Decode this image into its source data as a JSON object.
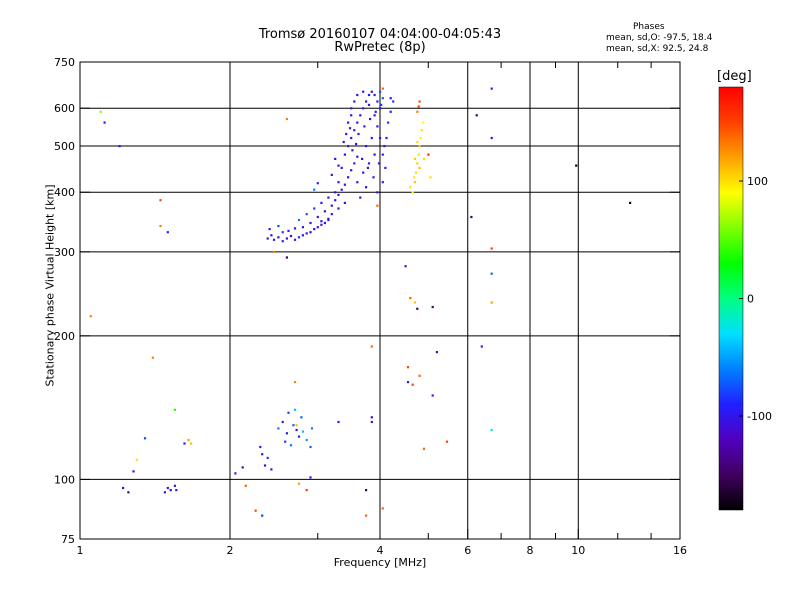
{
  "chart_data": {
    "type": "scatter",
    "title": "Tromsø 20160107 04:04:00-04:05:43",
    "subtitle": "RwPretec (8p)",
    "xlabel": "Frequency [MHz]",
    "ylabel": "Stationary phase Virtual Height [km]",
    "x_scale": "log",
    "y_scale": "log",
    "xlim": [
      1,
      16
    ],
    "ylim": [
      75,
      750
    ],
    "x_ticks": [
      1,
      2,
      4,
      6,
      8,
      10,
      16
    ],
    "x_tick_labels": [
      "1",
      "2",
      "4",
      "6",
      "8",
      "10",
      "16"
    ],
    "y_ticks": [
      75,
      100,
      200,
      300,
      400,
      500,
      600,
      750
    ],
    "y_tick_labels": [
      "75",
      "100",
      "200",
      "300",
      "400",
      "500",
      "600",
      "750"
    ],
    "x_gridlines": [
      2,
      4,
      6,
      8,
      10
    ],
    "y_gridlines": [
      100,
      200,
      300,
      400,
      500,
      600
    ],
    "grid": true,
    "phases_legend": {
      "title": "Phases",
      "o_text": "mean, sd,O: -97.5, 18.4",
      "x_text": "mean, sd,X:  92.5, 24.8"
    },
    "colorbar": {
      "unit_label": "[deg]",
      "range": [
        -180,
        180
      ],
      "ticks": [
        100,
        0,
        -100
      ],
      "tick_labels": [
        "100",
        "0",
        "-100"
      ]
    },
    "color_scale": [
      "#000000",
      "#400060",
      "#5000c0",
      "#2020ff",
      "#0080ff",
      "#00e0ff",
      "#00ff80",
      "#00ff00",
      "#80ff00",
      "#ffff00",
      "#ffa000",
      "#ff4000",
      "#ff0000"
    ],
    "series": [
      {
        "points": [
          [
            2.38,
            320,
            -100
          ],
          [
            2.42,
            325,
            -110
          ],
          [
            2.45,
            318,
            -95
          ],
          [
            2.5,
            322,
            -105
          ],
          [
            2.55,
            316,
            -90
          ],
          [
            2.6,
            320,
            -100
          ],
          [
            2.65,
            324,
            -115
          ],
          [
            2.7,
            318,
            -100
          ],
          [
            2.75,
            322,
            -85
          ],
          [
            2.8,
            325,
            -105
          ],
          [
            2.85,
            328,
            -100
          ],
          [
            2.9,
            330,
            -110
          ],
          [
            2.95,
            335,
            -100
          ],
          [
            3.0,
            338,
            -95
          ],
          [
            3.05,
            342,
            -100
          ],
          [
            3.1,
            345,
            -105
          ],
          [
            3.15,
            350,
            -100
          ],
          [
            2.4,
            335,
            -90
          ],
          [
            2.5,
            340,
            -75
          ],
          [
            2.55,
            330,
            -80
          ],
          [
            2.62,
            332,
            -95
          ],
          [
            2.7,
            336,
            -100
          ],
          [
            2.8,
            338,
            -100
          ],
          [
            2.9,
            345,
            -105
          ],
          [
            3.0,
            355,
            -100
          ],
          [
            3.1,
            365,
            -110
          ],
          [
            3.2,
            375,
            -100
          ],
          [
            3.25,
            385,
            -95
          ],
          [
            3.3,
            395,
            -100
          ],
          [
            3.35,
            405,
            -105
          ],
          [
            3.4,
            415,
            -100
          ],
          [
            3.45,
            430,
            -110
          ],
          [
            3.5,
            445,
            -100
          ],
          [
            3.55,
            460,
            -95
          ],
          [
            3.6,
            475,
            -100
          ],
          [
            3.4,
            380,
            -100
          ],
          [
            3.3,
            370,
            -105
          ],
          [
            3.2,
            360,
            -100
          ],
          [
            3.15,
            352,
            -110
          ],
          [
            3.05,
            348,
            -100
          ],
          [
            3.35,
            450,
            -100
          ],
          [
            3.4,
            480,
            -110
          ],
          [
            3.45,
            500,
            -105
          ],
          [
            3.5,
            520,
            -100
          ],
          [
            3.55,
            540,
            -95
          ],
          [
            3.6,
            560,
            -100
          ],
          [
            3.65,
            580,
            -110
          ],
          [
            3.7,
            600,
            -100
          ],
          [
            3.75,
            620,
            -105
          ],
          [
            3.8,
            640,
            -100
          ],
          [
            3.85,
            650,
            -110
          ],
          [
            3.9,
            640,
            -95
          ],
          [
            3.95,
            620,
            -100
          ],
          [
            4.0,
            600,
            -100
          ],
          [
            3.5,
            600,
            -90
          ],
          [
            3.55,
            620,
            -100
          ],
          [
            3.6,
            640,
            -110
          ],
          [
            3.7,
            650,
            -100
          ],
          [
            3.8,
            610,
            -105
          ],
          [
            3.9,
            580,
            -100
          ],
          [
            3.95,
            550,
            -95
          ],
          [
            4.0,
            520,
            -100
          ],
          [
            4.05,
            480,
            -90
          ],
          [
            4.1,
            450,
            -95
          ],
          [
            3.6,
            420,
            -100
          ],
          [
            3.7,
            440,
            -105
          ],
          [
            3.8,
            460,
            -100
          ],
          [
            3.9,
            480,
            -110
          ],
          [
            3.75,
            500,
            -100
          ],
          [
            3.85,
            520,
            -105
          ],
          [
            3.95,
            400,
            -100
          ],
          [
            4.05,
            420,
            -95
          ],
          [
            3.65,
            390,
            -100
          ],
          [
            3.75,
            410,
            -110
          ],
          [
            3.45,
            560,
            -100
          ],
          [
            3.5,
            580,
            -105
          ],
          [
            3.62,
            530,
            -100
          ],
          [
            3.72,
            550,
            -95
          ],
          [
            3.82,
            570,
            -110
          ],
          [
            3.92,
            590,
            -100
          ],
          [
            4.02,
            610,
            -80
          ],
          [
            4.05,
            630,
            -70
          ],
          [
            4.0,
            650,
            -75
          ],
          [
            3.3,
            420,
            -100
          ],
          [
            3.25,
            400,
            -110
          ],
          [
            3.15,
            390,
            -100
          ],
          [
            3.05,
            380,
            -95
          ],
          [
            2.95,
            370,
            -80
          ],
          [
            2.85,
            360,
            -70
          ],
          [
            2.75,
            350,
            -60
          ],
          [
            2.95,
            405,
            -60
          ],
          [
            3.0,
            418,
            -90
          ],
          [
            3.2,
            435,
            -100
          ],
          [
            3.3,
            455,
            -105
          ],
          [
            3.25,
            470,
            -100
          ],
          [
            3.38,
            510,
            -110
          ],
          [
            3.42,
            530,
            -100
          ],
          [
            3.48,
            545,
            -100
          ],
          [
            3.52,
            490,
            -105
          ],
          [
            3.58,
            505,
            -100
          ],
          [
            3.68,
            470,
            -110
          ],
          [
            3.78,
            450,
            -100
          ],
          [
            3.88,
            430,
            -95
          ],
          [
            3.98,
            460,
            -100
          ],
          [
            4.08,
            500,
            -100
          ],
          [
            4.12,
            520,
            -90
          ],
          [
            4.15,
            560,
            -80
          ],
          [
            4.2,
            590,
            -90
          ],
          [
            4.25,
            620,
            -85
          ],
          [
            4.2,
            630,
            -95
          ],
          [
            4.65,
            400,
            90
          ],
          [
            4.7,
            420,
            110
          ],
          [
            4.72,
            440,
            100
          ],
          [
            4.75,
            460,
            105
          ],
          [
            4.78,
            480,
            100
          ],
          [
            4.8,
            500,
            110
          ],
          [
            4.82,
            520,
            95
          ],
          [
            4.85,
            540,
            100
          ],
          [
            4.88,
            560,
            90
          ],
          [
            4.7,
            470,
            105
          ],
          [
            4.75,
            510,
            100
          ],
          [
            4.8,
            450,
            110
          ],
          [
            4.9,
            470,
            100
          ],
          [
            4.68,
            430,
            95
          ],
          [
            4.6,
            410,
            100
          ],
          [
            4.75,
            590,
            130
          ],
          [
            4.8,
            620,
            145
          ],
          [
            4.78,
            605,
            160
          ],
          [
            2.32,
            113,
            -100
          ],
          [
            2.35,
            107,
            -110
          ],
          [
            2.38,
            111,
            -80
          ],
          [
            2.3,
            117,
            -90
          ],
          [
            2.42,
            105,
            -100
          ],
          [
            2.5,
            128,
            -60
          ],
          [
            2.55,
            132,
            -90
          ],
          [
            2.6,
            125,
            -100
          ],
          [
            2.62,
            138,
            -80
          ],
          [
            2.68,
            130,
            -70
          ],
          [
            2.72,
            127,
            -105
          ],
          [
            2.75,
            123,
            -90
          ],
          [
            2.65,
            118,
            -60
          ],
          [
            2.58,
            120,
            -80
          ],
          [
            2.8,
            126,
            -40
          ],
          [
            2.85,
            121,
            -50
          ],
          [
            2.9,
            117,
            -70
          ],
          [
            2.92,
            128,
            -60
          ],
          [
            2.78,
            135,
            -70
          ],
          [
            2.7,
            140,
            -40
          ],
          [
            1.5,
            96,
            -100
          ],
          [
            1.52,
            95,
            -110
          ],
          [
            1.55,
            97,
            -105
          ],
          [
            1.48,
            94,
            -100
          ],
          [
            1.56,
            95,
            -90
          ],
          [
            1.12,
            560,
            -90
          ],
          [
            1.1,
            590,
            60
          ],
          [
            1.2,
            500,
            -100
          ],
          [
            1.45,
            385,
            150
          ],
          [
            1.45,
            340,
            130
          ],
          [
            1.5,
            330,
            -90
          ],
          [
            1.05,
            220,
            130
          ],
          [
            1.4,
            180,
            130
          ],
          [
            1.55,
            140,
            40
          ],
          [
            1.35,
            122,
            -80
          ],
          [
            1.3,
            110,
            100
          ],
          [
            1.28,
            104,
            -100
          ],
          [
            1.22,
            96,
            -110
          ],
          [
            1.25,
            94,
            -130
          ],
          [
            1.62,
            119,
            -90
          ],
          [
            1.65,
            121,
            120
          ],
          [
            1.67,
            119,
            110
          ],
          [
            2.05,
            103,
            -100
          ],
          [
            2.12,
            106,
            -120
          ],
          [
            2.15,
            97,
            140
          ],
          [
            2.25,
            86,
            150
          ],
          [
            2.32,
            84,
            -80
          ],
          [
            2.45,
            300,
            130
          ],
          [
            2.6,
            292,
            -150
          ],
          [
            2.6,
            570,
            130
          ],
          [
            2.75,
            98,
            120
          ],
          [
            2.85,
            95,
            150
          ],
          [
            2.9,
            101,
            -90
          ],
          [
            2.7,
            160,
            130
          ],
          [
            2.72,
            130,
            110
          ],
          [
            3.3,
            132,
            -90
          ],
          [
            3.75,
            95,
            -150
          ],
          [
            3.75,
            84,
            140
          ],
          [
            3.85,
            135,
            -110
          ],
          [
            3.85,
            132,
            -100
          ],
          [
            3.85,
            190,
            140
          ],
          [
            3.95,
            375,
            140
          ],
          [
            4.05,
            87,
            140
          ],
          [
            4.5,
            280,
            -100
          ],
          [
            4.55,
            160,
            -100
          ],
          [
            4.7,
            235,
            110
          ],
          [
            4.75,
            228,
            -150
          ],
          [
            4.8,
            165,
            140
          ],
          [
            4.9,
            116,
            140
          ],
          [
            5.1,
            230,
            -140
          ],
          [
            5.2,
            185,
            -110
          ],
          [
            5.1,
            150,
            -90
          ],
          [
            5.45,
            120,
            150
          ],
          [
            6.1,
            355,
            -150
          ],
          [
            6.25,
            580,
            -150
          ],
          [
            6.4,
            190,
            -100
          ],
          [
            6.7,
            660,
            -90
          ],
          [
            6.7,
            520,
            -110
          ],
          [
            6.7,
            305,
            150
          ],
          [
            6.7,
            270,
            -70
          ],
          [
            6.7,
            235,
            120
          ],
          [
            6.7,
            127,
            -30
          ],
          [
            9.9,
            455,
            -170
          ],
          [
            12.7,
            380,
            -170
          ],
          [
            4.05,
            660,
            140
          ],
          [
            4.6,
            240,
            140
          ],
          [
            4.55,
            172,
            150
          ],
          [
            4.65,
            158,
            150
          ],
          [
            5.0,
            480,
            160
          ],
          [
            5.05,
            430,
            100
          ]
        ]
      }
    ]
  }
}
